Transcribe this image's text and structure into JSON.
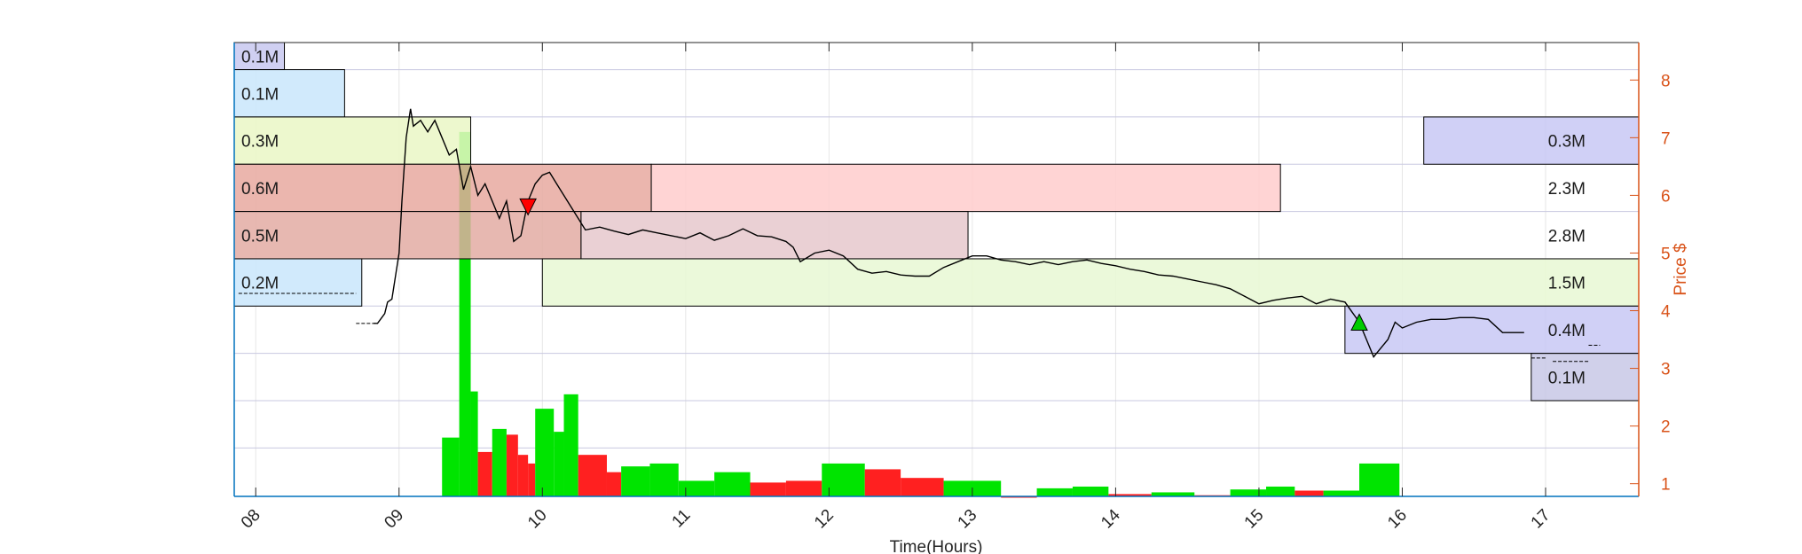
{
  "chart_data": {
    "type": "bar",
    "xlabel": "Time(Hours)",
    "ylabel": "Price $",
    "xlim": [
      7.85,
      17.65
    ],
    "ylim": [
      0.78,
      8.65
    ],
    "x_ticks": [
      8,
      9,
      10,
      11,
      12,
      13,
      14,
      15,
      16,
      17
    ],
    "x_tick_labels": [
      "08",
      "09",
      "10",
      "11",
      "12",
      "13",
      "14",
      "15",
      "16",
      "17"
    ],
    "y_ticks": [
      1,
      2,
      3,
      4,
      5,
      6,
      7,
      8
    ],
    "y_tick_labels": [
      "1",
      "2",
      "3",
      "4",
      "5",
      "6",
      "7",
      "8"
    ],
    "price_grid_levels": [
      1.62,
      2.44,
      3.26,
      4.08,
      4.9,
      5.72,
      6.54,
      7.36,
      8.18
    ],
    "colors": {
      "right_axis": "#d95319",
      "left_axis": "#0072bd",
      "grid": "#c8c8e0",
      "price_line": "#000000",
      "volume_up": "#00e400",
      "volume_down": "#ff2020"
    },
    "volume_profile_left": [
      {
        "price_low": 8.18,
        "price_high": 8.65,
        "time_end": 8.2,
        "label": "0.1M",
        "color": "#c8c8f0"
      },
      {
        "price_low": 7.36,
        "price_high": 8.18,
        "time_end": 8.62,
        "label": "0.1M",
        "color": "#c9e6fb"
      },
      {
        "price_low": 6.54,
        "price_high": 7.36,
        "time_end": 9.5,
        "label": "0.3M",
        "color": "#eaf7c6"
      },
      {
        "price_low": 5.72,
        "price_high": 6.54,
        "time_end": 10.76,
        "label": "0.6M",
        "color": "#e7a9a0"
      },
      {
        "price_low": 4.9,
        "price_high": 5.72,
        "time_end": 10.27,
        "label": "0.5M",
        "color": "#e3aba3"
      },
      {
        "price_low": 4.08,
        "price_high": 4.9,
        "time_end": 8.74,
        "label": "0.2M",
        "color": "#c9e6fb"
      }
    ],
    "volume_profile_right": [
      {
        "price_low": 6.54,
        "price_high": 7.36,
        "time_start": 16.15,
        "time_end": 17.65,
        "label": "0.3M",
        "color": "#c8c8f5"
      },
      {
        "price_low": 5.72,
        "price_high": 6.54,
        "time_start": 10.76,
        "time_end": 15.15,
        "label": "2.3M",
        "color": "#ffcccc"
      },
      {
        "price_low": 4.9,
        "price_high": 5.72,
        "time_start": 10.27,
        "time_end": 12.97,
        "label": "2.8M",
        "color": "#e6c8cc"
      },
      {
        "price_low": 4.08,
        "price_high": 4.9,
        "time_start": 10.0,
        "time_end": 17.65,
        "label": "1.5M",
        "color": "#e7f8d4"
      },
      {
        "price_low": 3.26,
        "price_high": 4.08,
        "time_start": 15.6,
        "time_end": 17.65,
        "label": "0.4M",
        "color": "#c8c8f5"
      },
      {
        "price_low": 2.44,
        "price_high": 3.26,
        "time_start": 16.9,
        "time_end": 17.65,
        "label": "0.1M",
        "color": "#c8c8e6"
      }
    ],
    "volume_bars": [
      {
        "start": 9.3,
        "end": 9.42,
        "height": 1.8,
        "dir": "up"
      },
      {
        "start": 9.42,
        "end": 9.5,
        "height": 7.1,
        "dir": "up"
      },
      {
        "start": 9.5,
        "end": 9.55,
        "height": 2.6,
        "dir": "up"
      },
      {
        "start": 9.55,
        "end": 9.65,
        "height": 1.55,
        "dir": "down"
      },
      {
        "start": 9.65,
        "end": 9.75,
        "height": 1.95,
        "dir": "up"
      },
      {
        "start": 9.75,
        "end": 9.83,
        "height": 1.85,
        "dir": "down"
      },
      {
        "start": 9.83,
        "end": 9.9,
        "height": 1.5,
        "dir": "down"
      },
      {
        "start": 9.9,
        "end": 9.95,
        "height": 1.35,
        "dir": "down"
      },
      {
        "start": 9.95,
        "end": 10.08,
        "height": 2.3,
        "dir": "up"
      },
      {
        "start": 10.08,
        "end": 10.15,
        "height": 1.9,
        "dir": "up"
      },
      {
        "start": 10.15,
        "end": 10.25,
        "height": 2.55,
        "dir": "up"
      },
      {
        "start": 10.25,
        "end": 10.45,
        "height": 1.5,
        "dir": "down"
      },
      {
        "start": 10.45,
        "end": 10.55,
        "height": 1.2,
        "dir": "down"
      },
      {
        "start": 10.55,
        "end": 10.75,
        "height": 1.3,
        "dir": "up"
      },
      {
        "start": 10.75,
        "end": 10.95,
        "height": 1.35,
        "dir": "up"
      },
      {
        "start": 10.95,
        "end": 11.2,
        "height": 1.05,
        "dir": "up"
      },
      {
        "start": 11.2,
        "end": 11.45,
        "height": 1.2,
        "dir": "up"
      },
      {
        "start": 11.45,
        "end": 11.7,
        "height": 1.02,
        "dir": "down"
      },
      {
        "start": 11.7,
        "end": 11.95,
        "height": 1.05,
        "dir": "down"
      },
      {
        "start": 11.95,
        "end": 12.25,
        "height": 1.35,
        "dir": "up"
      },
      {
        "start": 12.25,
        "end": 12.5,
        "height": 1.25,
        "dir": "down"
      },
      {
        "start": 12.5,
        "end": 12.8,
        "height": 1.1,
        "dir": "down"
      },
      {
        "start": 12.8,
        "end": 13.2,
        "height": 1.05,
        "dir": "up"
      },
      {
        "start": 13.2,
        "end": 13.45,
        "height": 0.78,
        "dir": "down"
      },
      {
        "start": 13.45,
        "end": 13.7,
        "height": 0.92,
        "dir": "up"
      },
      {
        "start": 13.7,
        "end": 13.95,
        "height": 0.95,
        "dir": "up"
      },
      {
        "start": 13.95,
        "end": 14.25,
        "height": 0.82,
        "dir": "down"
      },
      {
        "start": 14.25,
        "end": 14.55,
        "height": 0.85,
        "dir": "up"
      },
      {
        "start": 14.55,
        "end": 14.8,
        "height": 0.8,
        "dir": "down"
      },
      {
        "start": 14.8,
        "end": 15.05,
        "height": 0.9,
        "dir": "up"
      },
      {
        "start": 15.05,
        "end": 15.25,
        "height": 0.95,
        "dir": "up"
      },
      {
        "start": 15.25,
        "end": 15.45,
        "height": 0.88,
        "dir": "down"
      },
      {
        "start": 15.45,
        "end": 15.7,
        "height": 0.88,
        "dir": "up"
      },
      {
        "start": 15.7,
        "end": 15.98,
        "height": 1.35,
        "dir": "up"
      }
    ],
    "price_trace": [
      [
        8.82,
        3.78
      ],
      [
        8.85,
        3.78
      ],
      [
        8.9,
        3.95
      ],
      [
        8.92,
        4.15
      ],
      [
        8.95,
        4.2
      ],
      [
        9.0,
        5.0
      ],
      [
        9.02,
        5.9
      ],
      [
        9.05,
        7.0
      ],
      [
        9.08,
        7.5
      ],
      [
        9.1,
        7.2
      ],
      [
        9.15,
        7.3
      ],
      [
        9.2,
        7.1
      ],
      [
        9.25,
        7.3
      ],
      [
        9.3,
        7.0
      ],
      [
        9.35,
        6.7
      ],
      [
        9.4,
        6.8
      ],
      [
        9.45,
        6.1
      ],
      [
        9.5,
        6.5
      ],
      [
        9.55,
        6.0
      ],
      [
        9.6,
        6.2
      ],
      [
        9.65,
        5.9
      ],
      [
        9.7,
        5.6
      ],
      [
        9.75,
        5.9
      ],
      [
        9.8,
        5.2
      ],
      [
        9.85,
        5.3
      ],
      [
        9.9,
        5.9
      ],
      [
        9.95,
        6.2
      ],
      [
        10.0,
        6.35
      ],
      [
        10.05,
        6.4
      ],
      [
        10.1,
        6.2
      ],
      [
        10.15,
        6.0
      ],
      [
        10.2,
        5.8
      ],
      [
        10.25,
        5.6
      ],
      [
        10.3,
        5.4
      ],
      [
        10.4,
        5.45
      ],
      [
        10.5,
        5.38
      ],
      [
        10.6,
        5.32
      ],
      [
        10.7,
        5.4
      ],
      [
        10.8,
        5.35
      ],
      [
        10.9,
        5.3
      ],
      [
        11.0,
        5.25
      ],
      [
        11.1,
        5.35
      ],
      [
        11.2,
        5.22
      ],
      [
        11.3,
        5.3
      ],
      [
        11.4,
        5.42
      ],
      [
        11.5,
        5.3
      ],
      [
        11.6,
        5.28
      ],
      [
        11.7,
        5.2
      ],
      [
        11.75,
        5.1
      ],
      [
        11.8,
        4.85
      ],
      [
        11.9,
        5.0
      ],
      [
        12.0,
        5.05
      ],
      [
        12.1,
        4.95
      ],
      [
        12.2,
        4.72
      ],
      [
        12.3,
        4.65
      ],
      [
        12.4,
        4.68
      ],
      [
        12.5,
        4.62
      ],
      [
        12.6,
        4.6
      ],
      [
        12.7,
        4.6
      ],
      [
        12.8,
        4.75
      ],
      [
        12.9,
        4.85
      ],
      [
        13.0,
        4.95
      ],
      [
        13.1,
        4.95
      ],
      [
        13.2,
        4.88
      ],
      [
        13.3,
        4.85
      ],
      [
        13.4,
        4.8
      ],
      [
        13.5,
        4.85
      ],
      [
        13.6,
        4.8
      ],
      [
        13.7,
        4.85
      ],
      [
        13.8,
        4.88
      ],
      [
        13.9,
        4.82
      ],
      [
        14.0,
        4.78
      ],
      [
        14.1,
        4.72
      ],
      [
        14.2,
        4.68
      ],
      [
        14.3,
        4.62
      ],
      [
        14.4,
        4.6
      ],
      [
        14.5,
        4.55
      ],
      [
        14.6,
        4.5
      ],
      [
        14.7,
        4.45
      ],
      [
        14.8,
        4.38
      ],
      [
        14.9,
        4.25
      ],
      [
        15.0,
        4.12
      ],
      [
        15.1,
        4.18
      ],
      [
        15.2,
        4.22
      ],
      [
        15.3,
        4.25
      ],
      [
        15.4,
        4.12
      ],
      [
        15.5,
        4.2
      ],
      [
        15.6,
        4.15
      ],
      [
        15.7,
        3.8
      ],
      [
        15.75,
        3.5
      ],
      [
        15.8,
        3.2
      ],
      [
        15.85,
        3.35
      ],
      [
        15.9,
        3.5
      ],
      [
        15.95,
        3.8
      ],
      [
        16.0,
        3.7
      ],
      [
        16.1,
        3.8
      ],
      [
        16.2,
        3.85
      ],
      [
        16.3,
        3.85
      ],
      [
        16.4,
        3.88
      ],
      [
        16.5,
        3.88
      ],
      [
        16.6,
        3.85
      ],
      [
        16.7,
        3.62
      ],
      [
        16.8,
        3.62
      ],
      [
        16.85,
        3.62
      ]
    ],
    "price_fragments": [
      {
        "start": 7.88,
        "end": 8.7,
        "price": 4.3
      },
      {
        "start": 8.7,
        "end": 8.82,
        "price": 3.78
      },
      {
        "start": 16.9,
        "end": 17.0,
        "price": 3.18
      },
      {
        "start": 17.05,
        "end": 17.3,
        "price": 3.12
      },
      {
        "start": 17.3,
        "end": 17.38,
        "price": 3.4
      }
    ],
    "markers": [
      {
        "type": "sell",
        "time": 9.9,
        "price": 5.8,
        "color": "#ff0000"
      },
      {
        "type": "buy",
        "time": 15.7,
        "price": 3.8,
        "color": "#00cc00"
      }
    ]
  }
}
